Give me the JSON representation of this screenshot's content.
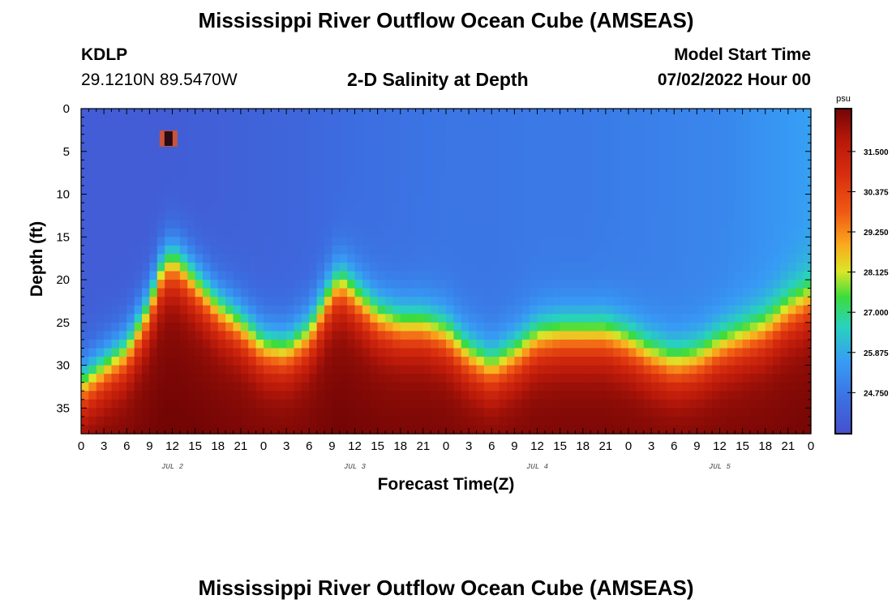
{
  "header": {
    "title": "Mississippi River Outflow Ocean Cube (AMSEAS)",
    "station_id": "KDLP",
    "station_coords": "29.1210N  89.5470W",
    "subtitle": "2-D Salinity at Depth",
    "model_start_label": "Model Start Time",
    "model_start_value": "07/02/2022 Hour 00"
  },
  "footer": {
    "title": "Mississippi River Outflow Ocean Cube (AMSEAS)"
  },
  "chart_data": {
    "type": "heatmap",
    "xlabel": "Forecast Time(Z)",
    "ylabel": "Depth (ft)",
    "x_range_hours": [
      0,
      96
    ],
    "x_tick_labels": [
      "0",
      "3",
      "6",
      "9",
      "12",
      "15",
      "18",
      "21",
      "0",
      "3",
      "6",
      "9",
      "12",
      "15",
      "18",
      "21",
      "0",
      "3",
      "6",
      "9",
      "12",
      "15",
      "18",
      "21",
      "0",
      "3",
      "6",
      "9",
      "12",
      "15",
      "18",
      "21",
      "0"
    ],
    "day_labels": [
      "JUL 2",
      "JUL 3",
      "JUL 4",
      "JUL 5"
    ],
    "y_range_ft": [
      0,
      38
    ],
    "y_ticks": [
      0,
      5,
      10,
      15,
      20,
      25,
      30,
      35
    ],
    "colorbar": {
      "unit": "psu",
      "range": [
        23.6,
        32.7
      ],
      "tick_values": [
        24.75,
        25.875,
        27.0,
        28.125,
        29.25,
        30.375,
        31.5
      ],
      "tick_labels": [
        "24.750",
        "25.875",
        "27.000",
        "28.125",
        "29.250",
        "30.375",
        "31.500"
      ]
    },
    "halocline_depth_ft": {
      "hours": [
        0,
        3,
        6,
        9,
        10,
        11,
        12,
        13,
        14,
        15,
        18,
        21,
        24,
        27,
        30,
        33,
        34,
        35,
        36,
        39,
        42,
        45,
        48,
        51,
        54,
        57,
        60,
        63,
        66,
        69,
        72,
        75,
        78,
        81,
        84,
        87,
        90,
        93,
        96
      ],
      "depth": [
        31,
        29,
        27,
        22,
        19,
        17,
        16.5,
        17,
        18,
        19,
        22,
        24,
        26.5,
        27,
        25,
        20,
        19,
        19.5,
        20.5,
        23,
        24,
        24,
        25,
        27.5,
        29,
        27.5,
        25.5,
        25,
        25,
        25,
        26,
        27.5,
        28.5,
        28,
        26.5,
        25.5,
        24.5,
        22.5,
        21
      ]
    },
    "surface_salinity": {
      "hours": [
        0,
        6,
        12,
        18,
        24,
        30,
        36,
        42,
        48,
        54,
        60,
        66,
        72,
        78,
        84,
        90,
        96
      ],
      "psu": [
        24.0,
        24.0,
        24.0,
        24.1,
        24.2,
        24.3,
        24.5,
        24.6,
        24.7,
        24.7,
        24.8,
        24.8,
        24.9,
        25.0,
        25.1,
        25.4,
        25.7
      ]
    },
    "bottom_salinity_psu": 32.3,
    "anomaly": {
      "hour": 11.5,
      "depth_ft": 3.5,
      "psu": 33.0
    }
  }
}
